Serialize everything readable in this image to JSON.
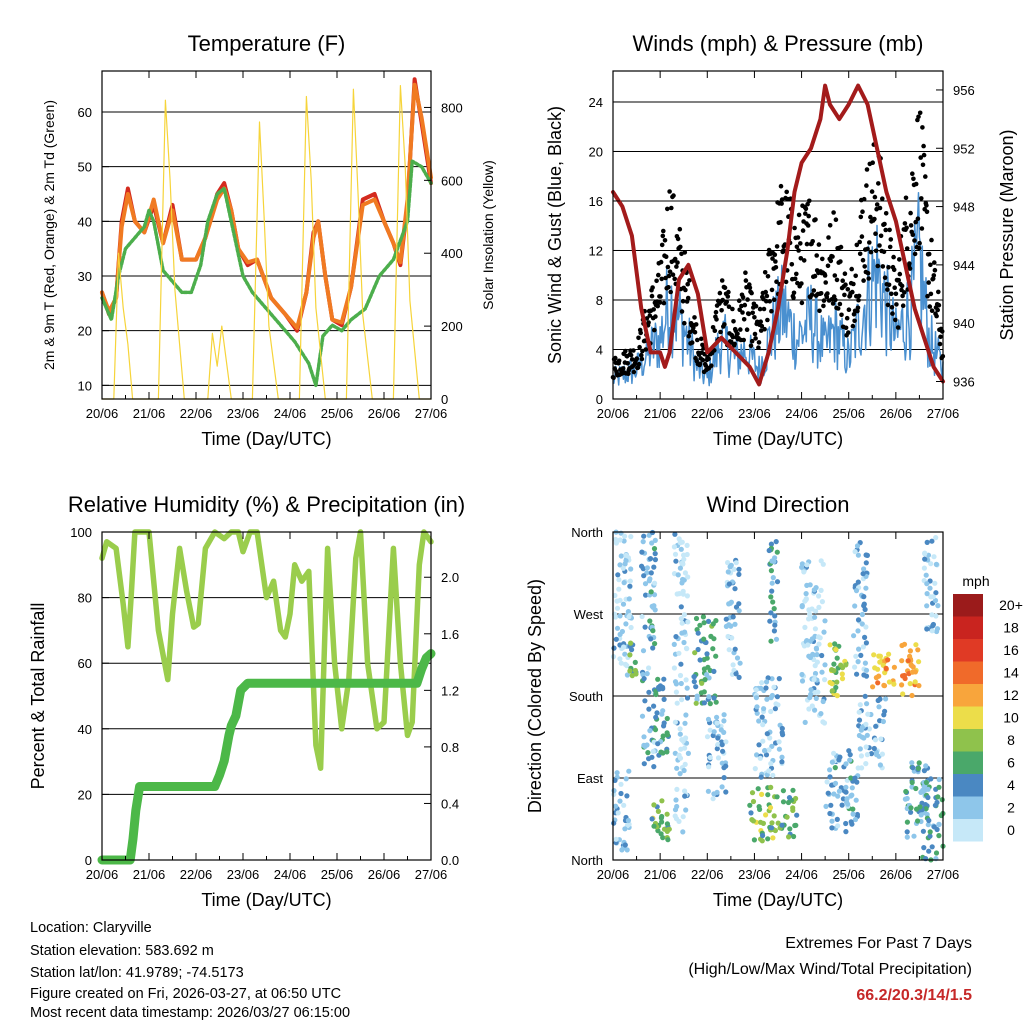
{
  "colors": {
    "temp_2m": "#d42a1e",
    "temp_9m": "#f07a22",
    "dewpoint": "#4cae4c",
    "solar": "#f6d43a",
    "sonic_wind": "#4a90d0",
    "gust": "#000000",
    "pressure": "#a31b1b",
    "rh": "#9acd4c",
    "precip": "#4cb848",
    "extremes_value": "#c62828"
  },
  "chart_data": [
    {
      "id": "temperature",
      "type": "line",
      "title": "Temperature (F)",
      "xlabel": "Time (Day/UTC)",
      "ylabel_left": "2m & 9m T (Red, Orange) & 2m Td (Green)",
      "ylabel_right": "Solar Insolation (Yellow)",
      "x_ticks": [
        "20/06",
        "21/06",
        "22/06",
        "23/06",
        "24/06",
        "25/06",
        "26/06",
        "27/06"
      ],
      "x_range": [
        0,
        7
      ],
      "ylim_left": [
        7.5,
        67.5
      ],
      "yticks_left": [
        10,
        20,
        30,
        40,
        50,
        60
      ],
      "ylim_right": [
        0,
        900
      ],
      "yticks_right": [
        0,
        200,
        400,
        600,
        800
      ],
      "series": [
        {
          "name": "2m T",
          "color_key": "temp_2m",
          "x": [
            0,
            0.15,
            0.3,
            0.42,
            0.55,
            0.7,
            0.9,
            1.1,
            1.3,
            1.5,
            1.7,
            2.0,
            2.2,
            2.45,
            2.6,
            2.75,
            2.9,
            3.1,
            3.3,
            3.6,
            3.9,
            4.15,
            4.35,
            4.5,
            4.6,
            4.75,
            4.9,
            5.1,
            5.3,
            5.55,
            5.8,
            6.0,
            6.2,
            6.35,
            6.5,
            6.65,
            6.8,
            7.0
          ],
          "y": [
            27,
            23,
            26,
            40,
            46,
            40,
            38,
            43,
            36,
            43,
            33,
            33,
            37,
            45,
            47,
            42,
            35,
            32,
            33,
            26,
            23,
            20,
            27,
            38,
            40,
            30,
            22,
            21,
            28,
            44,
            45,
            40,
            36,
            32,
            43,
            66,
            58,
            47
          ]
        },
        {
          "name": "9m T",
          "color_key": "temp_9m",
          "x": [
            0,
            0.15,
            0.3,
            0.42,
            0.55,
            0.7,
            0.9,
            1.1,
            1.3,
            1.5,
            1.7,
            2.0,
            2.2,
            2.45,
            2.6,
            2.75,
            2.9,
            3.1,
            3.3,
            3.6,
            3.9,
            4.15,
            4.35,
            4.5,
            4.6,
            4.75,
            4.9,
            5.1,
            5.3,
            5.55,
            5.8,
            6.0,
            6.2,
            6.35,
            6.5,
            6.65,
            6.8,
            7.0
          ],
          "y": [
            27,
            23.5,
            26,
            39,
            45,
            40,
            38,
            44,
            36,
            42,
            33,
            33,
            37,
            44,
            46,
            42,
            35,
            32.5,
            33,
            26,
            23,
            20.5,
            27,
            37,
            40,
            30,
            22,
            21.5,
            28,
            43,
            44,
            40,
            36,
            32.5,
            44,
            65,
            59,
            48
          ]
        },
        {
          "name": "2m Td",
          "color_key": "dewpoint",
          "x": [
            0,
            0.2,
            0.35,
            0.5,
            0.7,
            0.9,
            1.0,
            1.1,
            1.3,
            1.5,
            1.7,
            1.9,
            2.1,
            2.25,
            2.45,
            2.6,
            2.8,
            3.0,
            3.2,
            3.5,
            3.8,
            4.1,
            4.4,
            4.55,
            4.7,
            4.9,
            5.1,
            5.3,
            5.6,
            5.9,
            6.2,
            6.5,
            6.6,
            6.8,
            7.0
          ],
          "y": [
            26,
            22,
            30,
            35,
            37,
            39,
            42,
            40,
            31,
            29,
            27,
            27,
            32,
            40,
            45,
            46,
            38,
            30,
            27,
            24,
            21,
            18,
            14,
            10,
            19,
            21,
            20,
            22,
            24,
            30,
            33,
            40,
            51,
            50,
            47
          ]
        },
        {
          "name": "Solar Insolation",
          "color_key": "solar",
          "axis": "right",
          "x": [
            0,
            0.25,
            0.35,
            0.45,
            0.55,
            0.65,
            0.8,
            1.2,
            1.35,
            1.45,
            1.55,
            1.75,
            2.25,
            2.35,
            2.45,
            2.55,
            2.75,
            3.2,
            3.35,
            3.45,
            3.55,
            3.75,
            4.2,
            4.35,
            4.45,
            4.55,
            4.75,
            5.2,
            5.35,
            5.45,
            5.55,
            5.75,
            6.2,
            6.35,
            6.45,
            6.55,
            6.75,
            7.0
          ],
          "y": [
            0,
            0,
            400,
            250,
            150,
            0,
            0,
            0,
            820,
            600,
            300,
            0,
            0,
            180,
            90,
            200,
            0,
            0,
            760,
            500,
            200,
            0,
            0,
            830,
            600,
            250,
            0,
            0,
            850,
            560,
            230,
            0,
            0,
            860,
            640,
            270,
            0,
            0
          ]
        }
      ]
    },
    {
      "id": "winds",
      "type": "line+scatter",
      "title": "Winds (mph) & Pressure (mb)",
      "xlabel": "Time (Day/UTC)",
      "ylabel_left": "Sonic Wind & Gust (Blue, Black)",
      "ylabel_right": "Station Pressure (Maroon)",
      "x_ticks": [
        "20/06",
        "21/06",
        "22/06",
        "23/06",
        "24/06",
        "25/06",
        "26/06",
        "27/06"
      ],
      "x_range": [
        0,
        7
      ],
      "ylim_left": [
        0,
        26.5
      ],
      "yticks_left": [
        0,
        4,
        8,
        12,
        16,
        20,
        24
      ],
      "ylim_right": [
        934.8,
        957.3
      ],
      "yticks_right": [
        936,
        940,
        944,
        948,
        952,
        956
      ],
      "series": [
        {
          "name": "Sonic Wind",
          "color_key": "sonic_wind",
          "x": [
            0,
            0.5,
            0.8,
            1.0,
            1.2,
            1.5,
            1.8,
            2.0,
            2.3,
            2.6,
            2.8,
            3.1,
            3.4,
            3.6,
            3.9,
            4.2,
            4.5,
            4.7,
            5.0,
            5.3,
            5.6,
            5.8,
            6.0,
            6.3,
            6.5,
            6.7,
            7.0
          ],
          "y": [
            2,
            3,
            5,
            6,
            10,
            7,
            3,
            2,
            6,
            4,
            5,
            3,
            7,
            9,
            6,
            8,
            5,
            7,
            4,
            9,
            13,
            9,
            6,
            9,
            14,
            6,
            3
          ]
        },
        {
          "name": "Gust",
          "color_key": "gust",
          "x": [
            0,
            0.5,
            0.8,
            1.0,
            1.2,
            1.5,
            1.8,
            2.0,
            2.3,
            2.6,
            2.8,
            3.1,
            3.4,
            3.6,
            3.9,
            4.2,
            4.5,
            4.7,
            5.0,
            5.3,
            5.6,
            5.8,
            6.0,
            6.3,
            6.5,
            6.7,
            7.0
          ],
          "y": [
            3,
            4,
            8,
            10,
            16,
            11,
            5,
            3,
            9,
            6,
            9,
            6,
            13,
            16,
            13,
            15,
            11,
            14,
            8,
            16,
            19,
            14,
            9,
            17,
            22,
            13,
            5
          ]
        },
        {
          "name": "Station Pressure",
          "color_key": "pressure",
          "axis": "right",
          "x": [
            0,
            0.2,
            0.4,
            0.6,
            0.8,
            1.0,
            1.1,
            1.2,
            1.4,
            1.6,
            1.8,
            2.0,
            2.3,
            2.6,
            2.9,
            3.1,
            3.3,
            3.5,
            3.7,
            3.85,
            4.0,
            4.2,
            4.4,
            4.5,
            4.6,
            4.8,
            5.0,
            5.2,
            5.4,
            5.6,
            5.8,
            6.0,
            6.2,
            6.4,
            6.6,
            6.8,
            7.0
          ],
          "y": [
            949,
            948,
            946,
            941,
            938,
            938,
            937,
            938,
            943,
            944,
            942,
            938,
            939,
            938,
            937,
            935.8,
            938,
            941,
            945,
            949,
            951,
            952,
            954,
            956.3,
            955,
            954,
            955,
            956.3,
            955,
            952,
            949,
            947,
            944,
            941,
            939,
            937,
            936
          ]
        }
      ]
    },
    {
      "id": "humidity",
      "type": "line",
      "title": "Relative Humidity (%) & Precipitation (in)",
      "xlabel": "Time (Day/UTC)",
      "ylabel_left": "Percent & Total Rainfall",
      "x_ticks": [
        "20/06",
        "21/06",
        "22/06",
        "23/06",
        "24/06",
        "25/06",
        "26/06",
        "27/06"
      ],
      "x_range": [
        0,
        7
      ],
      "ylim_left": [
        0,
        100
      ],
      "yticks_left": [
        0,
        20,
        40,
        60,
        80,
        100
      ],
      "ylim_right": [
        0,
        2.32
      ],
      "yticks_right": [
        0.0,
        0.4,
        0.8,
        1.2,
        1.6,
        2.0
      ],
      "series": [
        {
          "name": "Relative Humidity",
          "color_key": "rh",
          "x": [
            0,
            0.1,
            0.3,
            0.45,
            0.55,
            0.62,
            0.7,
            0.8,
            1.0,
            1.2,
            1.4,
            1.5,
            1.65,
            1.8,
            1.95,
            2.05,
            2.2,
            2.4,
            2.6,
            2.75,
            2.9,
            3.0,
            3.15,
            3.3,
            3.5,
            3.65,
            3.8,
            3.9,
            4.0,
            4.1,
            4.25,
            4.4,
            4.55,
            4.65,
            4.8,
            4.95,
            5.1,
            5.25,
            5.4,
            5.5,
            5.65,
            5.85,
            6.0,
            6.2,
            6.35,
            6.5,
            6.6,
            6.75,
            6.85,
            7.0
          ],
          "y": [
            92,
            97,
            95,
            78,
            65,
            80,
            100,
            100,
            100,
            70,
            55,
            75,
            95,
            82,
            71,
            72,
            95,
            100,
            98,
            100,
            100,
            94,
            100,
            100,
            80,
            85,
            70,
            68,
            75,
            90,
            85,
            88,
            35,
            28,
            95,
            60,
            40,
            55,
            92,
            100,
            60,
            40,
            42,
            95,
            60,
            38,
            42,
            90,
            100,
            97
          ]
        },
        {
          "name": "Total Precipitation",
          "color_key": "precip",
          "axis": "right",
          "x": [
            0,
            0.6,
            0.66,
            0.72,
            0.8,
            1.5,
            2.4,
            2.5,
            2.6,
            2.7,
            2.75,
            2.85,
            2.95,
            3.1,
            3.2,
            3.5,
            5.0,
            6.0,
            6.7,
            6.8,
            6.9,
            7.0
          ],
          "y": [
            0.0,
            0.0,
            0.15,
            0.35,
            0.52,
            0.52,
            0.52,
            0.6,
            0.7,
            0.88,
            0.95,
            1.02,
            1.2,
            1.25,
            1.25,
            1.25,
            1.25,
            1.25,
            1.25,
            1.35,
            1.43,
            1.46
          ]
        }
      ]
    },
    {
      "id": "wind_direction",
      "type": "scatter",
      "title": "Wind Direction",
      "xlabel": "Time (Day/UTC)",
      "ylabel_left": "Direction (Colored By Speed)",
      "x_ticks": [
        "20/06",
        "21/06",
        "22/06",
        "23/06",
        "24/06",
        "25/06",
        "26/06",
        "27/06"
      ],
      "x_range": [
        0,
        7
      ],
      "ylim_left": [
        0,
        360
      ],
      "y_ticks": [
        {
          "value": 0,
          "label": "North"
        },
        {
          "value": 90,
          "label": "East"
        },
        {
          "value": 180,
          "label": "South"
        },
        {
          "value": 270,
          "label": "West"
        },
        {
          "value": 360,
          "label": "North"
        }
      ],
      "colorbar": {
        "title": "mph",
        "levels": [
          "20+",
          "18",
          "16",
          "14",
          "12",
          "10",
          "8",
          "6",
          "4",
          "2",
          "0"
        ],
        "colors": [
          "#9b1b1b",
          "#c9241f",
          "#e03a25",
          "#f06a2a",
          "#f8a53c",
          "#ecdd4a",
          "#8fc24c",
          "#4aa86a",
          "#4a88c2",
          "#8ec6ea",
          "#c6e8f8"
        ]
      },
      "clusters": [
        {
          "t0": 0.0,
          "t1": 0.35,
          "d0": 10,
          "d1": 100,
          "speed": 2
        },
        {
          "t0": 0.0,
          "t1": 0.4,
          "d0": 200,
          "d1": 360,
          "speed": 1
        },
        {
          "t0": 0.35,
          "t1": 0.5,
          "d0": 200,
          "d1": 240,
          "speed": 6
        },
        {
          "t0": 0.6,
          "t1": 0.9,
          "d0": 100,
          "d1": 360,
          "speed": 3
        },
        {
          "t0": 0.8,
          "t1": 1.2,
          "d0": 20,
          "d1": 70,
          "speed": 7
        },
        {
          "t0": 0.9,
          "t1": 1.2,
          "d0": 110,
          "d1": 200,
          "speed": 4
        },
        {
          "t0": 1.3,
          "t1": 1.6,
          "d0": 30,
          "d1": 360,
          "speed": 1
        },
        {
          "t0": 1.7,
          "t1": 2.2,
          "d0": 170,
          "d1": 270,
          "speed": 5
        },
        {
          "t0": 2.0,
          "t1": 2.4,
          "d0": 60,
          "d1": 160,
          "speed": 2
        },
        {
          "t0": 2.4,
          "t1": 2.7,
          "d0": 200,
          "d1": 330,
          "speed": 2
        },
        {
          "t0": 2.9,
          "t1": 3.9,
          "d0": 20,
          "d1": 80,
          "speed": 7
        },
        {
          "t0": 3.0,
          "t1": 3.6,
          "d0": 90,
          "d1": 200,
          "speed": 2
        },
        {
          "t0": 3.3,
          "t1": 3.5,
          "d0": 240,
          "d1": 350,
          "speed": 4
        },
        {
          "t0": 4.0,
          "t1": 4.5,
          "d0": 150,
          "d1": 330,
          "speed": 1
        },
        {
          "t0": 4.6,
          "t1": 5.0,
          "d0": 180,
          "d1": 240,
          "speed": 8
        },
        {
          "t0": 4.5,
          "t1": 5.2,
          "d0": 30,
          "d1": 120,
          "speed": 3
        },
        {
          "t0": 5.1,
          "t1": 5.4,
          "d0": 200,
          "d1": 350,
          "speed": 2
        },
        {
          "t0": 5.5,
          "t1": 6.0,
          "d0": 190,
          "d1": 230,
          "speed": 12
        },
        {
          "t0": 5.2,
          "t1": 5.8,
          "d0": 100,
          "d1": 180,
          "speed": 2
        },
        {
          "t0": 6.1,
          "t1": 6.5,
          "d0": 180,
          "d1": 240,
          "speed": 12
        },
        {
          "t0": 6.2,
          "t1": 6.7,
          "d0": 20,
          "d1": 110,
          "speed": 4
        },
        {
          "t0": 6.6,
          "t1": 6.9,
          "d0": 250,
          "d1": 360,
          "speed": 2
        },
        {
          "t0": 6.5,
          "t1": 7.0,
          "d0": 0,
          "d1": 90,
          "speed": 4
        }
      ]
    }
  ],
  "footer": {
    "location": "Location: Claryville",
    "elevation": "Station elevation: 583.692 m",
    "latlon": "Station lat/lon: 41.9789; -74.5173",
    "created": "Figure created on Fri, 2026-03-27, at 06:50 UTC",
    "recent": "Most recent data timestamp: 2026/03/27 06:15:00"
  },
  "extremes": {
    "title": "Extremes For Past 7 Days",
    "subtitle": "(High/Low/Max Wind/Total Precipitation)",
    "value": "66.2/20.3/14/1.5"
  }
}
